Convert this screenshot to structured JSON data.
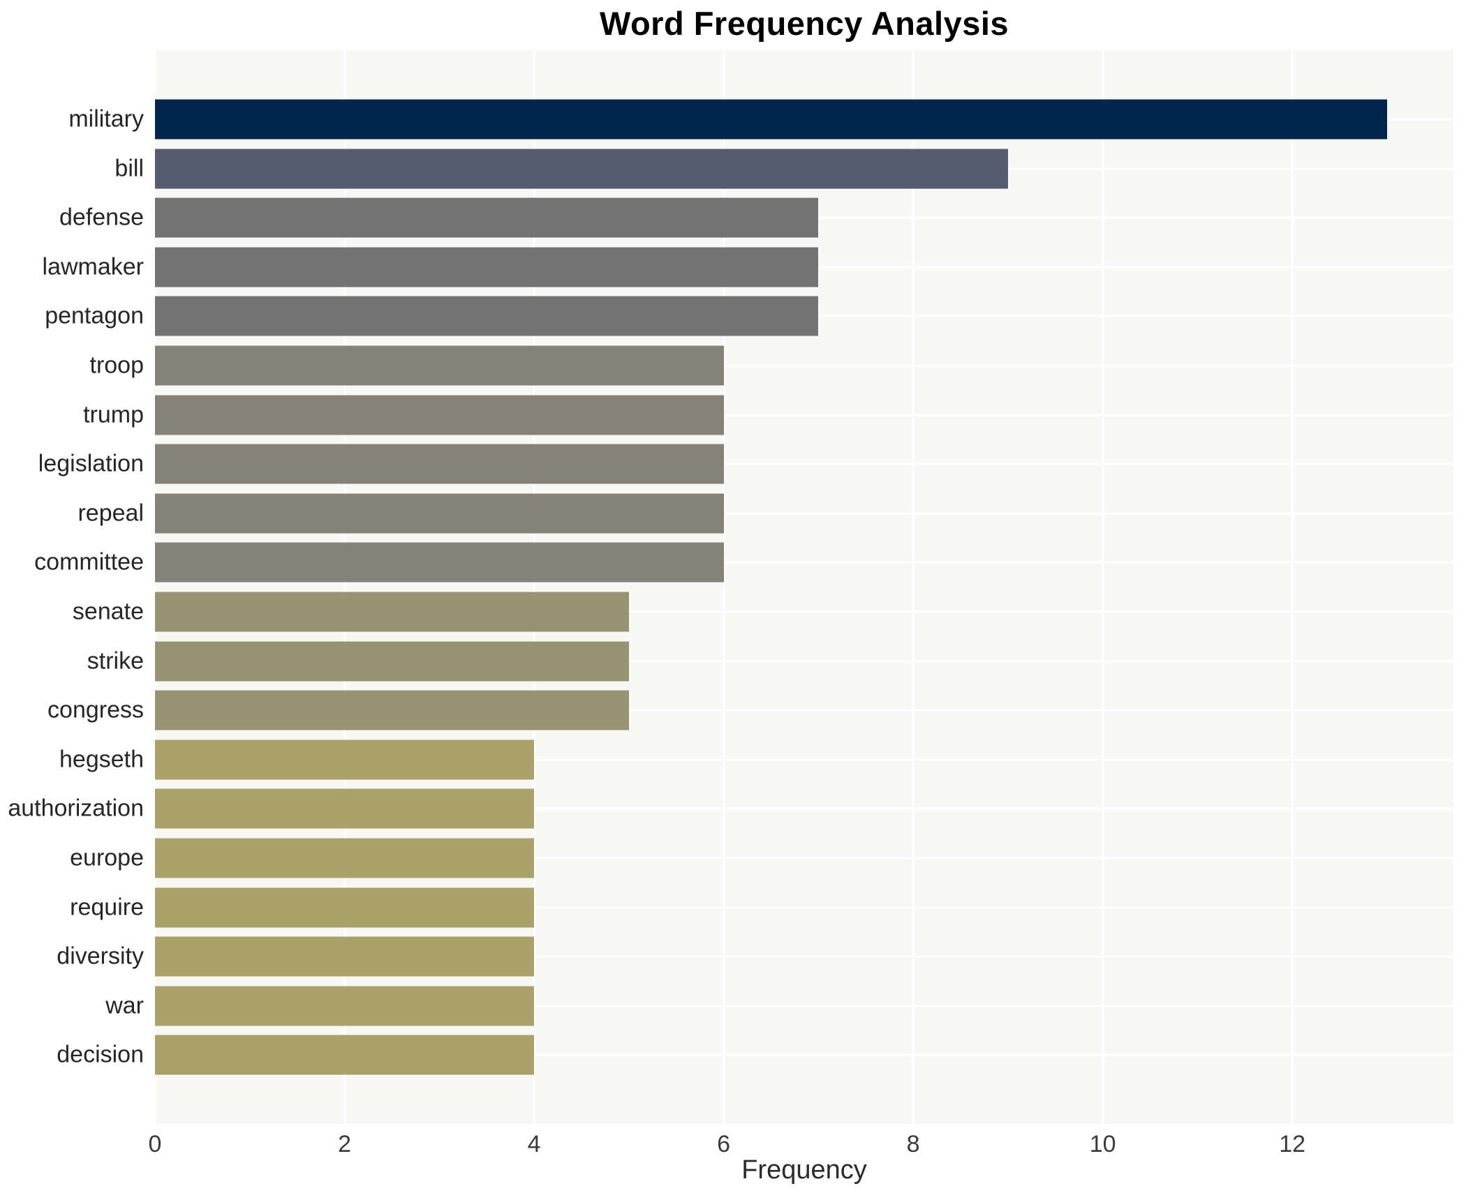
{
  "chart_data": {
    "type": "bar",
    "orientation": "horizontal",
    "title": "Word Frequency Analysis",
    "xlabel": "Frequency",
    "ylabel": "",
    "categories": [
      "military",
      "bill",
      "defense",
      "lawmaker",
      "pentagon",
      "troop",
      "trump",
      "legislation",
      "repeal",
      "committee",
      "senate",
      "strike",
      "congress",
      "hegseth",
      "authorization",
      "europe",
      "require",
      "diversity",
      "war",
      "decision"
    ],
    "values": [
      13,
      9,
      7,
      7,
      7,
      6,
      6,
      6,
      6,
      6,
      5,
      5,
      5,
      4,
      4,
      4,
      4,
      4,
      4,
      4
    ],
    "bar_colors": [
      "#00254f",
      "#555c70",
      "#737373",
      "#737373",
      "#737373",
      "#85827a",
      "#85827a",
      "#85827a",
      "#85827a",
      "#85827a",
      "#9a9372",
      "#9a9372",
      "#9a9372",
      "#aaa16b",
      "#aaa16b",
      "#aaa16b",
      "#aaa16b",
      "#aaa16b",
      "#aaa16b",
      "#aaa16b"
    ],
    "xticks": [
      0,
      2,
      4,
      6,
      8,
      10,
      12
    ],
    "xlim": [
      0,
      13.7
    ],
    "grid": true,
    "legend": "none",
    "colors": {
      "figure_background": "#ffffff",
      "plot_background": "#f7f7f6",
      "grid": "#ffffff",
      "title_text": "#000000",
      "tick_text": "#3a3a3a",
      "category_text": "#262626",
      "axis_label_text": "#2b2b2b"
    }
  }
}
